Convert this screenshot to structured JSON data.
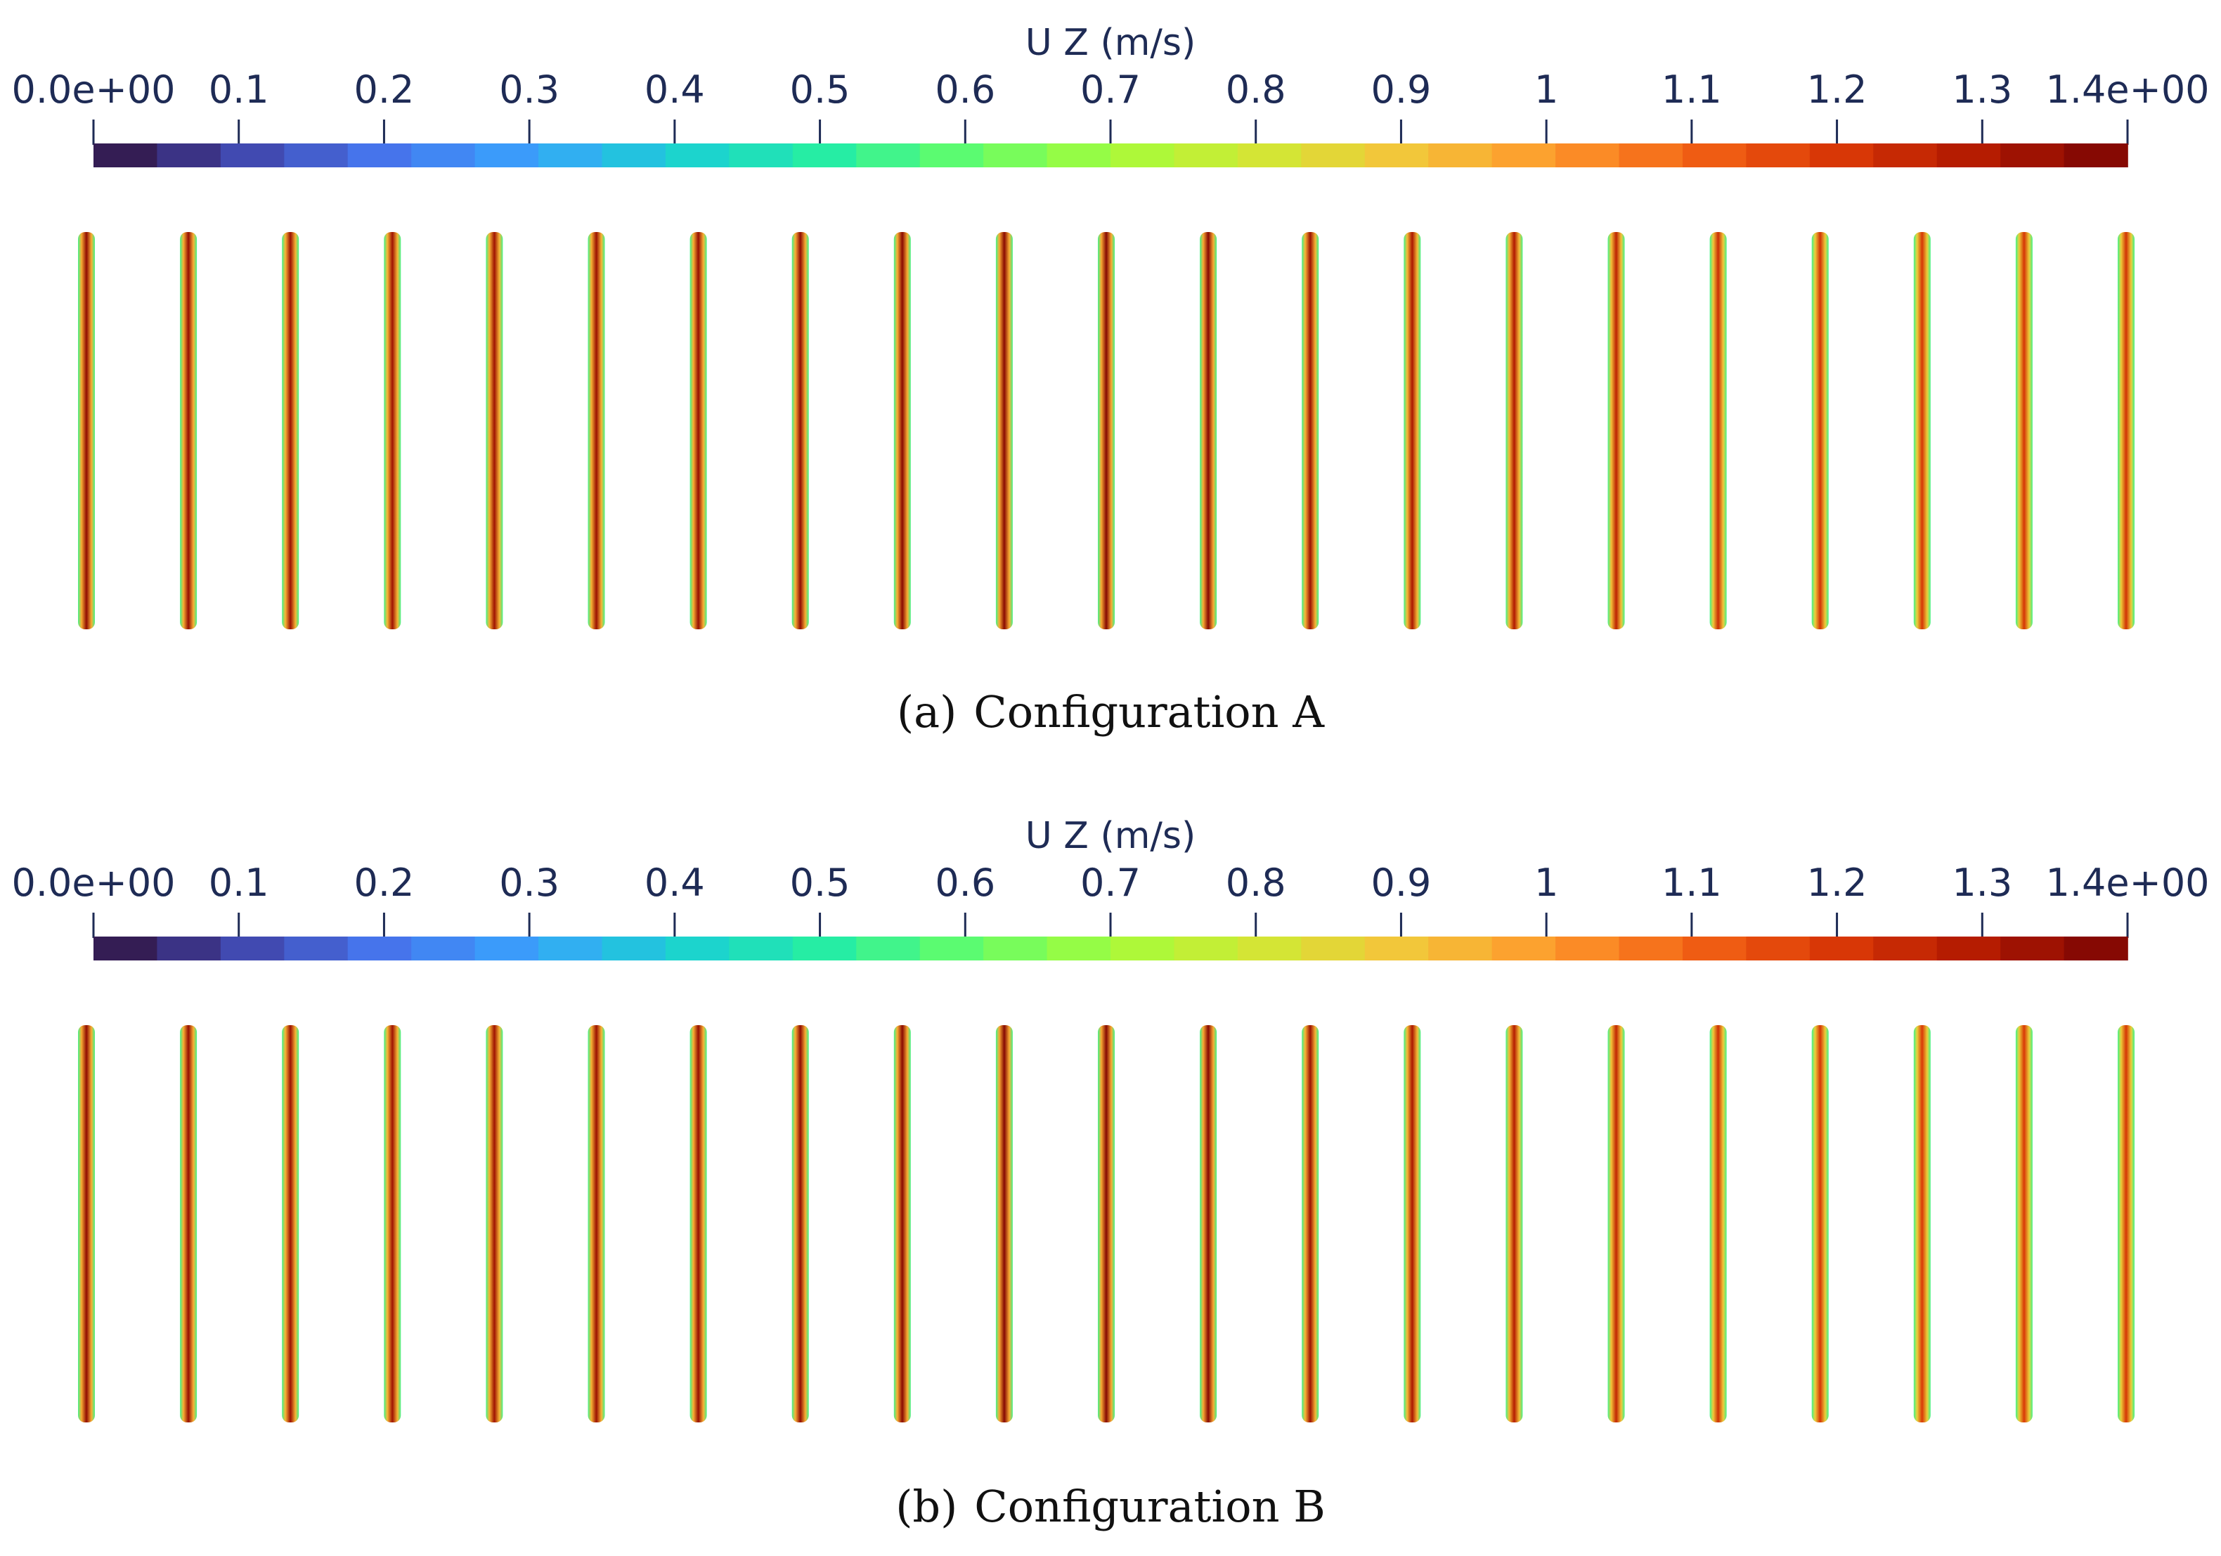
{
  "chart_data": [
    {
      "type": "heatmap",
      "caption_label": "(a)",
      "caption_text": "Configuration A",
      "colorbar": {
        "title": "U Z (m/s)",
        "range": [
          0.0,
          1.4
        ],
        "ticks": [
          0.0,
          0.1,
          0.2,
          0.3,
          0.4,
          0.5,
          0.6,
          0.7,
          0.8,
          0.9,
          1.0,
          1.1,
          1.2,
          1.3,
          1.4
        ],
        "tick_labels": [
          "0.0e+00",
          "0.1",
          "0.2",
          "0.3",
          "0.4",
          "0.5",
          "0.6",
          "0.7",
          "0.8",
          "0.9",
          "1",
          "1.1",
          "1.2",
          "1.3",
          "1.4e+00"
        ],
        "colormap": "turbo"
      },
      "channels": {
        "count": 21,
        "core_velocity": [
          1.36,
          1.35,
          1.34,
          1.33,
          1.33,
          1.34,
          1.35,
          1.36,
          1.37,
          1.37,
          1.38,
          1.38,
          1.34,
          1.31,
          1.3,
          1.27,
          1.24,
          1.22,
          1.21,
          1.21,
          1.22
        ],
        "wall_velocity": 0.55
      }
    },
    {
      "type": "heatmap",
      "caption_label": "(b)",
      "caption_text": "Configuration B",
      "colorbar": {
        "title": "U Z (m/s)",
        "range": [
          0.0,
          1.4
        ],
        "ticks": [
          0.0,
          0.1,
          0.2,
          0.3,
          0.4,
          0.5,
          0.6,
          0.7,
          0.8,
          0.9,
          1.0,
          1.1,
          1.2,
          1.3,
          1.4
        ],
        "tick_labels": [
          "0.0e+00",
          "0.1",
          "0.2",
          "0.3",
          "0.4",
          "0.5",
          "0.6",
          "0.7",
          "0.8",
          "0.9",
          "1",
          "1.1",
          "1.2",
          "1.3",
          "1.4e+00"
        ],
        "colormap": "turbo"
      },
      "channels": {
        "count": 21,
        "core_velocity": [
          1.36,
          1.35,
          1.34,
          1.33,
          1.33,
          1.34,
          1.35,
          1.36,
          1.37,
          1.38,
          1.38,
          1.38,
          1.34,
          1.31,
          1.29,
          1.26,
          1.23,
          1.21,
          1.2,
          1.2,
          1.21
        ],
        "wall_velocity": 0.55
      }
    }
  ]
}
